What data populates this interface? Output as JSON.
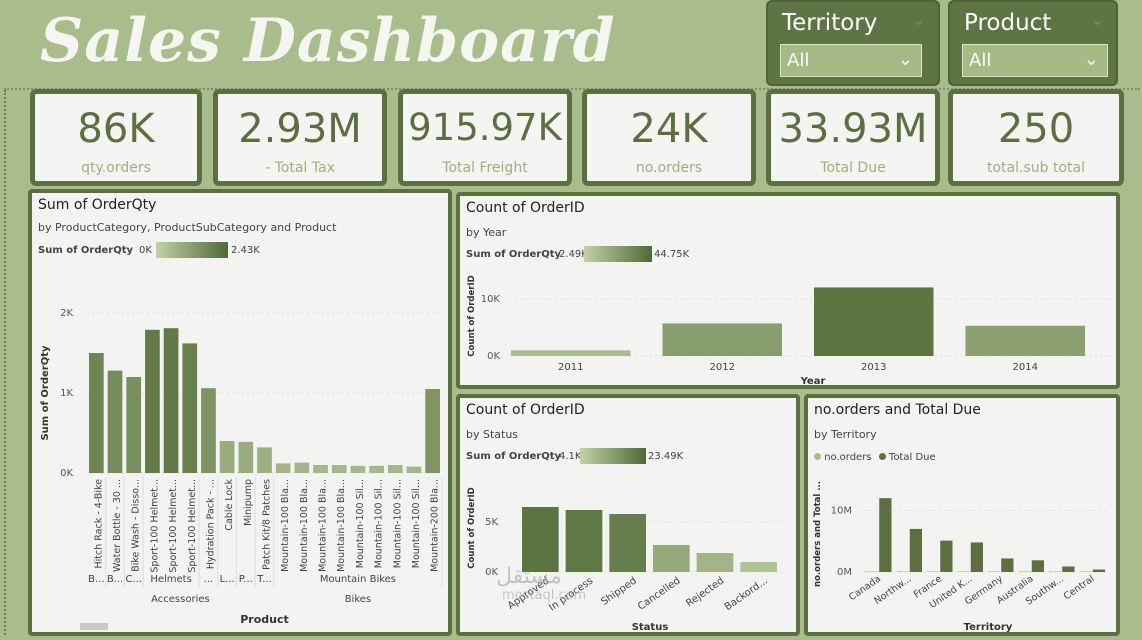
{
  "header": {
    "title": "Sales Dashboard"
  },
  "slicers": [
    {
      "title": "Territory",
      "value": "All"
    },
    {
      "title": "Product",
      "value": "All"
    }
  ],
  "kpis": [
    {
      "value": "86K",
      "label": "qty.orders"
    },
    {
      "value": "2.93M",
      "label": "- Total Tax"
    },
    {
      "value": "915.97K",
      "label": "Total Freight"
    },
    {
      "value": "24K",
      "label": "no.orders"
    },
    {
      "value": "33.93M",
      "label": "Total Due"
    },
    {
      "value": "250",
      "label": "total.sub total"
    }
  ],
  "watermark": {
    "arabic": "مستقل",
    "latin": "mostaql.com"
  },
  "colors": {
    "dark": "#5b6f40",
    "bg": "#a9bd8c",
    "panel": "#f3f3f1"
  },
  "chart_data": [
    {
      "type": "bar",
      "title": "Sum of OrderQty",
      "subtitle": "by ProductCategory, ProductSubCategory and Product",
      "legend": {
        "label": "Sum of OrderQty",
        "min": "0K",
        "max": "2.43K"
      },
      "xlabel": "Product",
      "ylabel": "Sum of OrderQty",
      "yticks": [
        "0K",
        "1K",
        "2K"
      ],
      "ylim": [
        0,
        2000
      ],
      "categories": [
        "Hitch Rack - 4-Bike",
        "Water Bottle - 30 ...",
        "Bike Wash - Disso...",
        "Sport-100 Helmet...",
        "Sport-100 Helmet...",
        "Sport-100 Helmet...",
        "Hydration Pack - ...",
        "Cable Lock",
        "Minipump",
        "Patch Kit/8 Patches",
        "Mountain-100 Bla...",
        "Mountain-100 Bla...",
        "Mountain-100 Bla...",
        "Mountain-100 Bla...",
        "Mountain-100 Sil...",
        "Mountain-100 Sil...",
        "Mountain-100 Sil...",
        "Mountain-100 Sil...",
        "Mountain-200 Bla..."
      ],
      "values": [
        1500,
        1280,
        1200,
        1790,
        1810,
        1620,
        1060,
        400,
        390,
        320,
        120,
        130,
        100,
        100,
        90,
        90,
        100,
        80,
        1050
      ],
      "subcategories": [
        {
          "label": "B...",
          "start": 0,
          "end": 0
        },
        {
          "label": "B...",
          "start": 1,
          "end": 1
        },
        {
          "label": "C...",
          "start": 2,
          "end": 2
        },
        {
          "label": "Helmets",
          "start": 3,
          "end": 5
        },
        {
          "label": "...",
          "start": 6,
          "end": 6
        },
        {
          "label": "L...",
          "start": 7,
          "end": 7
        },
        {
          "label": "P...",
          "start": 8,
          "end": 8
        },
        {
          "label": "T...",
          "start": 9,
          "end": 9
        },
        {
          "label": "Mountain Bikes",
          "start": 10,
          "end": 18
        }
      ],
      "productcategories": [
        {
          "label": "Accessories",
          "start": 0,
          "end": 9
        },
        {
          "label": "Bikes",
          "start": 10,
          "end": 18
        }
      ]
    },
    {
      "type": "bar",
      "title": "Count of OrderID",
      "subtitle": "by Year",
      "legend": {
        "label": "Sum of OrderQty",
        "min": "2.49K",
        "max": "44.75K"
      },
      "xlabel": "Year",
      "ylabel": "Count of OrderID",
      "yticks": [
        "0K",
        "10K"
      ],
      "ylim": [
        0,
        14000
      ],
      "categories": [
        "2011",
        "2012",
        "2013",
        "2014"
      ],
      "values": [
        1000,
        5700,
        12000,
        5300
      ]
    },
    {
      "type": "bar",
      "title": "Count of OrderID",
      "subtitle": "by Status",
      "legend": {
        "label": "Sum of OrderQty",
        "min": "4.1K",
        "max": "23.49K"
      },
      "xlabel": "Status",
      "ylabel": "Count of OrderID",
      "yticks": [
        "0K",
        "5K"
      ],
      "ylim": [
        0,
        8000
      ],
      "categories": [
        "Approved",
        "In process",
        "Shipped",
        "Cancelled",
        "Rejected",
        "Backord..."
      ],
      "values": [
        6500,
        6200,
        5800,
        2700,
        1900,
        1000
      ]
    },
    {
      "type": "bar",
      "title": "no.orders and Total Due",
      "subtitle": "by Territory",
      "xlabel": "Territory",
      "ylabel": "no.orders and Total ...",
      "yticks": [
        "0M",
        "10M"
      ],
      "ylim": [
        0,
        13000000
      ],
      "legend": {
        "location": "top-left"
      },
      "categories": [
        "Canada",
        "Northw...",
        "France",
        "United K...",
        "Germany",
        "Australia",
        "Southw...",
        "Central"
      ],
      "series": [
        {
          "name": "no.orders",
          "color": "#a9bd8c",
          "values": [
            3600,
            3600,
            2600,
            2700,
            2600,
            2800,
            3700,
            1700
          ]
        },
        {
          "name": "Total Due",
          "color": "#5b6f40",
          "values": [
            12000000,
            7000000,
            5100000,
            4800000,
            2200000,
            1900000,
            900000,
            400000
          ]
        }
      ]
    }
  ]
}
